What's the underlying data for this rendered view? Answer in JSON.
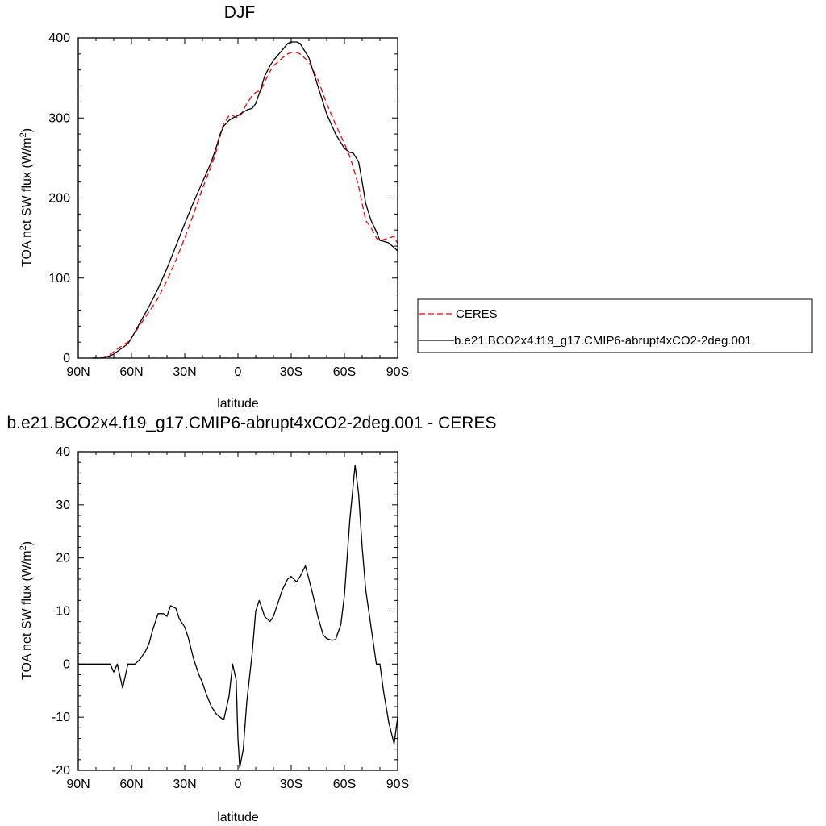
{
  "chart_data": [
    {
      "type": "line",
      "title": "DJF",
      "xlabel": "latitude",
      "ylabel": "TOA net SW flux (W/m",
      "ylabel_sup": "2",
      "ylabel_end": ")",
      "xlim": [
        90,
        -90
      ],
      "ylim": [
        0,
        400
      ],
      "x_ticks": [
        90,
        60,
        30,
        0,
        -30,
        -60,
        -90
      ],
      "x_tick_labels": [
        "90N",
        "60N",
        "30N",
        "0",
        "30S",
        "60S",
        "90S"
      ],
      "y_ticks": [
        0,
        100,
        200,
        300,
        400
      ],
      "y_tick_labels": [
        "0",
        "100",
        "200",
        "300",
        "400"
      ],
      "grid": false,
      "legend_position": "right",
      "series": [
        {
          "name": "CERES",
          "color": "#ff0000",
          "style": "dashed",
          "x": [
            82,
            78,
            75,
            72,
            70,
            67,
            65,
            62,
            60,
            55,
            50,
            45,
            40,
            35,
            30,
            25,
            20,
            15,
            12,
            10,
            8,
            5,
            3,
            0,
            -2,
            -5,
            -8,
            -10,
            -13,
            -15,
            -18,
            -20,
            -25,
            -28,
            -30,
            -33,
            -35,
            -40,
            -45,
            -50,
            -55,
            -60,
            -63,
            -65,
            -68,
            -70,
            -72,
            -75,
            -78,
            -80,
            -82,
            -85,
            -88,
            -90
          ],
          "y": [
            0,
            0,
            2,
            5,
            8,
            13,
            16,
            20,
            25,
            42,
            58,
            75,
            97,
            122,
            150,
            180,
            212,
            240,
            260,
            278,
            293,
            303,
            303,
            300,
            305,
            318,
            328,
            332,
            335,
            345,
            358,
            365,
            375,
            380,
            382,
            382,
            380,
            370,
            348,
            318,
            292,
            268,
            252,
            238,
            215,
            193,
            172,
            163,
            150,
            146,
            148,
            150,
            152,
            143
          ]
        },
        {
          "name": "b.e21.BCO2x4.f19_g17.CMIP6-abrupt4xCO2-2deg.001",
          "color": "#000000",
          "style": "solid",
          "x": [
            82,
            78,
            75,
            72,
            70,
            67,
            65,
            62,
            60,
            55,
            50,
            45,
            40,
            35,
            30,
            25,
            20,
            15,
            12,
            10,
            8,
            5,
            3,
            0,
            -2,
            -5,
            -8,
            -10,
            -13,
            -15,
            -18,
            -20,
            -25,
            -28,
            -30,
            -33,
            -35,
            -40,
            -45,
            -50,
            -55,
            -60,
            -63,
            -65,
            -68,
            -70,
            -72,
            -75,
            -78,
            -80,
            -82,
            -85,
            -88,
            -90
          ],
          "y": [
            0,
            0,
            1,
            3,
            5,
            10,
            13,
            18,
            25,
            45,
            65,
            87,
            112,
            140,
            168,
            195,
            220,
            245,
            265,
            280,
            290,
            297,
            300,
            303,
            306,
            310,
            312,
            318,
            337,
            352,
            365,
            372,
            385,
            393,
            395,
            395,
            393,
            375,
            340,
            305,
            280,
            262,
            257,
            256,
            245,
            220,
            193,
            172,
            158,
            147,
            146,
            144,
            138,
            134
          ]
        }
      ]
    },
    {
      "type": "line",
      "title": "b.e21.BCO2x4.f19_g17.CMIP6-abrupt4xCO2-2deg.001 - CERES",
      "xlabel": "latitude",
      "ylabel": "TOA net SW flux (W/m",
      "ylabel_sup": "2",
      "ylabel_end": ")",
      "xlim": [
        90,
        -90
      ],
      "ylim": [
        -20,
        40
      ],
      "x_ticks": [
        90,
        60,
        30,
        0,
        -30,
        -60,
        -90
      ],
      "x_tick_labels": [
        "90N",
        "60N",
        "30N",
        "0",
        "30S",
        "60S",
        "90S"
      ],
      "y_ticks": [
        -20,
        -10,
        0,
        10,
        20,
        30,
        40
      ],
      "y_tick_labels": [
        "-20",
        "-10",
        "0",
        "10",
        "20",
        "30",
        "40"
      ],
      "grid": false,
      "series": [
        {
          "color": "#000000",
          "style": "solid",
          "x": [
            90,
            85,
            80,
            75,
            72,
            70,
            68,
            65,
            62,
            60,
            58,
            55,
            52,
            50,
            48,
            45,
            42,
            40,
            38,
            35,
            33,
            30,
            28,
            25,
            22,
            20,
            18,
            15,
            12,
            10,
            8,
            5,
            3,
            1,
            0,
            -1,
            -3,
            -5,
            -8,
            -10,
            -12,
            -15,
            -18,
            -20,
            -22,
            -25,
            -28,
            -30,
            -33,
            -35,
            -38,
            -40,
            -43,
            -45,
            -48,
            -50,
            -53,
            -55,
            -58,
            -60,
            -63,
            -66,
            -68,
            -70,
            -72,
            -75,
            -78,
            -80,
            -82,
            -85,
            -88,
            -90
          ],
          "y": [
            0,
            0,
            0,
            0,
            0,
            -1.5,
            0,
            -4.5,
            0,
            0,
            0,
            1,
            2.5,
            4,
            6.5,
            9.5,
            9.5,
            9,
            11,
            10.5,
            8.5,
            7,
            5,
            1,
            -2,
            -3.5,
            -5.5,
            -8,
            -9.5,
            -10,
            -10.5,
            -6,
            0,
            -3,
            -14,
            -19.5,
            -16,
            -7,
            2,
            10,
            12,
            9,
            8,
            9,
            11,
            14,
            16,
            16.5,
            15.5,
            16.5,
            18.5,
            16,
            12,
            9,
            5.5,
            4.8,
            4.5,
            4.6,
            7.5,
            13,
            27,
            37.5,
            32,
            22,
            14,
            7,
            0,
            0,
            -5,
            -11,
            -15,
            -10
          ]
        }
      ]
    }
  ]
}
